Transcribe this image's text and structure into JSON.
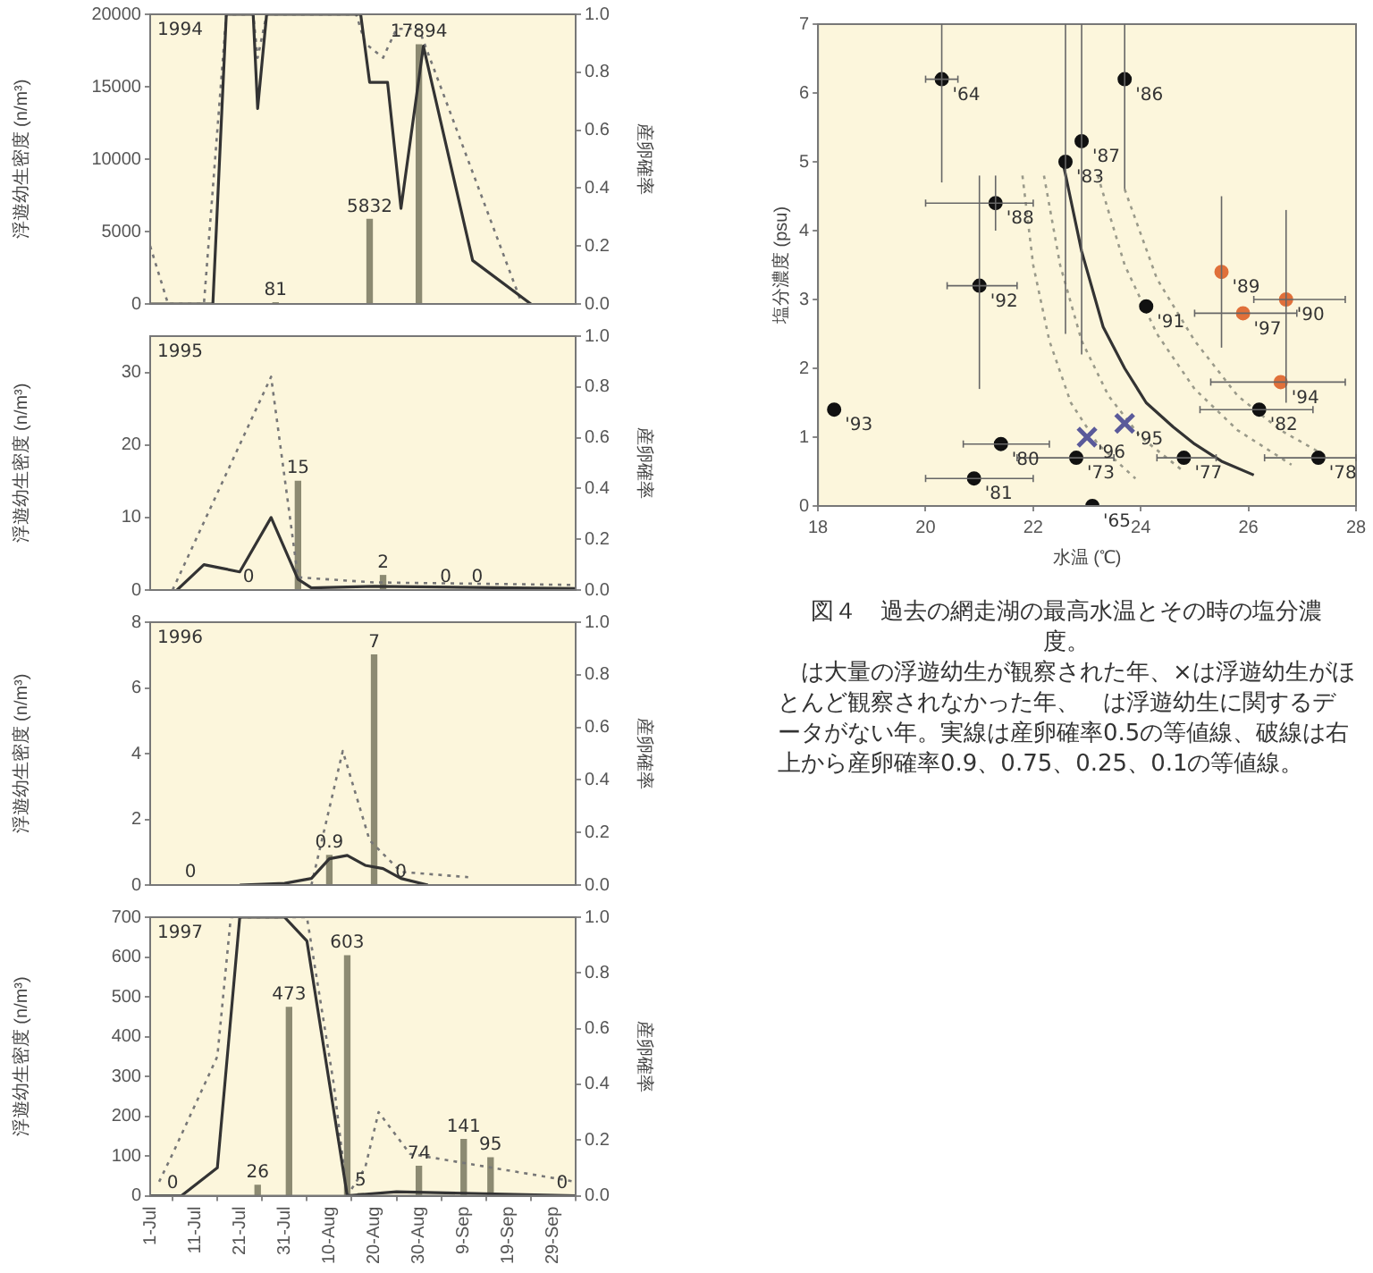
{
  "chart_data": [
    {
      "type": "line",
      "ylabel": "浮遊幼生密度 (n/m³)",
      "y2label": "産卵確率",
      "annotations": [
        "1994"
      ],
      "tick_labels": "y",
      "xlim": [
        "--07-01",
        "--10-04"
      ],
      "ylim": [
        0,
        20000
      ],
      "yticks": [
        0,
        5000,
        10000,
        15000,
        20000
      ],
      "y2lim": [
        0,
        1
      ],
      "y2ticks": [
        {
          "value": 0,
          "label": "0.0"
        },
        {
          "value": 0.2,
          "label": "0.2"
        },
        {
          "value": 0.4,
          "label": "0.4"
        },
        {
          "value": 0.6,
          "label": "0.6"
        },
        {
          "value": 0.8,
          "label": "0.8"
        },
        {
          "value": 1,
          "label": "1.0"
        }
      ],
      "series": [
        {
          "type": "bar",
          "color": "#8c8a72",
          "x": [
            "--07-29",
            "--08-19",
            "--08-30"
          ],
          "values": [
            81,
            5832,
            17894
          ],
          "value_labels": [
            "81",
            "5832",
            "17894"
          ]
        },
        {
          "color": "#333333",
          "line_style": "solid",
          "x": [
            "--07-01",
            "--07-13",
            "--07-15",
            "--07-18",
            "--07-24",
            "--07-25",
            "--07-27",
            "--08-17",
            "--08-19",
            "--08-23",
            "--08-26",
            "--08-31",
            "--09-11",
            "--09-24"
          ],
          "values": [
            0,
            0,
            0,
            20000,
            20000,
            13500,
            20000,
            20000,
            15300,
            15300,
            6600,
            17800,
            3000,
            0
          ]
        },
        {
          "color": "#777777",
          "line_style": "dotted",
          "axis": "y2",
          "x": [
            "--07-01",
            "--07-05",
            "--07-13",
            "--07-18",
            "--07-24",
            "--07-25",
            "--07-27",
            "--08-16",
            "--08-18",
            "--08-22",
            "--08-25",
            "--08-30",
            "--09-22"
          ],
          "values": [
            0.2,
            0,
            0,
            1,
            1,
            0.85,
            1,
            1,
            0.9,
            0.85,
            0.95,
            0.95,
            0
          ]
        }
      ]
    },
    {
      "type": "line",
      "ylabel": "浮遊幼生密度 (n/m³)",
      "y2label": "産卵確率",
      "annotations": [
        "1995"
      ],
      "tick_labels": "y",
      "xlim": [
        "--07-01",
        "--10-04"
      ],
      "ylim": [
        0,
        35
      ],
      "yticks": [
        0,
        10,
        20,
        30
      ],
      "y2lim": [
        0,
        1
      ],
      "y2ticks": [
        {
          "value": 0,
          "label": "0.0"
        },
        {
          "value": 0.2,
          "label": "0.2"
        },
        {
          "value": 0.4,
          "label": "0.4"
        },
        {
          "value": 0.6,
          "label": "0.6"
        },
        {
          "value": 0.8,
          "label": "0.8"
        },
        {
          "value": 1,
          "label": "1.0"
        }
      ],
      "series": [
        {
          "type": "bar",
          "color": "#8c8a72",
          "x": [
            "--07-23",
            "--08-03",
            "--08-22",
            "--09-05",
            "--09-12"
          ],
          "values": [
            0,
            15,
            2,
            0,
            0
          ],
          "value_labels": [
            "0",
            "15",
            "2",
            "0",
            "0"
          ]
        },
        {
          "color": "#333333",
          "line_style": "solid",
          "x": [
            "--07-07",
            "--07-13",
            "--07-17",
            "--07-21",
            "--07-28",
            "--08-03",
            "--08-06",
            "--08-20",
            "--10-04"
          ],
          "values": [
            0,
            3.5,
            3,
            2.5,
            10,
            1.5,
            0.3,
            0.5,
            0.2
          ]
        },
        {
          "color": "#777777",
          "line_style": "dotted",
          "axis": "y2",
          "x": [
            "--07-06",
            "--07-28",
            "--08-03",
            "--08-20",
            "--10-04"
          ],
          "values": [
            0,
            0.84,
            0.05,
            0.03,
            0.02
          ]
        }
      ]
    },
    {
      "type": "line",
      "ylabel": "浮遊幼生密度 (n/m³)",
      "y2label": "産卵確率",
      "annotations": [
        "1996"
      ],
      "tick_labels": "y",
      "xlim": [
        "--07-01",
        "--10-04"
      ],
      "ylim": [
        0,
        8
      ],
      "yticks": [
        0,
        2,
        4,
        6,
        8
      ],
      "y2lim": [
        0,
        1
      ],
      "y2ticks": [
        {
          "value": 0,
          "label": "0.0"
        },
        {
          "value": 0.2,
          "label": "0.2"
        },
        {
          "value": 0.4,
          "label": "0.4"
        },
        {
          "value": 0.6,
          "label": "0.6"
        },
        {
          "value": 0.8,
          "label": "0.8"
        },
        {
          "value": 1,
          "label": "1.0"
        }
      ],
      "series": [
        {
          "type": "bar",
          "color": "#8c8a72",
          "x": [
            "--07-10",
            "--08-10",
            "--08-20",
            "--08-26"
          ],
          "values": [
            0,
            0.9,
            7,
            0
          ],
          "value_labels": [
            "0",
            "0.9",
            "7",
            "0"
          ]
        },
        {
          "color": "#333333",
          "line_style": "solid",
          "x": [
            "--07-21",
            "--07-31",
            "--08-06",
            "--08-10",
            "--08-14",
            "--08-18",
            "--08-22",
            "--08-26",
            "--09-01"
          ],
          "values": [
            0,
            0.05,
            0.2,
            0.8,
            0.9,
            0.6,
            0.5,
            0.2,
            0
          ]
        },
        {
          "color": "#777777",
          "line_style": "dotted",
          "axis": "y2",
          "x": [
            "--08-06",
            "--08-13",
            "--08-19",
            "--08-26",
            "--09-10"
          ],
          "values": [
            0,
            0.51,
            0.17,
            0.05,
            0.03
          ]
        }
      ]
    },
    {
      "type": "line",
      "ylabel": "浮遊幼生密度 (n/m³)",
      "y2label": "産卵確率",
      "annotations": [
        "1997"
      ],
      "xlim": [
        "--07-01",
        "--10-04"
      ],
      "xticks": [
        {
          "value": "--07-01",
          "label": "1-Jul"
        },
        {
          "value": "--07-11",
          "label": "11-Jul"
        },
        {
          "value": "--07-21",
          "label": "21-Jul"
        },
        {
          "value": "--07-31",
          "label": "31-Jul"
        },
        {
          "value": "--08-10",
          "label": "10-Aug"
        },
        {
          "value": "--08-20",
          "label": "20-Aug"
        },
        {
          "value": "--08-30",
          "label": "30-Aug"
        },
        {
          "value": "--09-09",
          "label": "9-Sep"
        },
        {
          "value": "--09-19",
          "label": "19-Sep"
        },
        {
          "value": "--09-29",
          "label": "29-Sep"
        }
      ],
      "ylim": [
        0,
        700
      ],
      "yticks": [
        0,
        100,
        200,
        300,
        400,
        500,
        600,
        700
      ],
      "y2lim": [
        0,
        1
      ],
      "y2ticks": [
        {
          "value": 0,
          "label": "0.0"
        },
        {
          "value": 0.2,
          "label": "0.2"
        },
        {
          "value": 0.4,
          "label": "0.4"
        },
        {
          "value": 0.6,
          "label": "0.6"
        },
        {
          "value": 0.8,
          "label": "0.8"
        },
        {
          "value": 1,
          "label": "1.0"
        }
      ],
      "series": [
        {
          "type": "bar",
          "color": "#8c8a72",
          "x": [
            "--07-06",
            "--07-25",
            "--08-01",
            "--08-14",
            "--08-17",
            "--08-30",
            "--09-09",
            "--09-15",
            "--10-01"
          ],
          "values": [
            0,
            26,
            473,
            603,
            5,
            74,
            141,
            95,
            0
          ],
          "value_labels": [
            "0",
            "26",
            "473",
            "603",
            "5",
            "74",
            "141",
            "95",
            "0"
          ]
        },
        {
          "color": "#333333",
          "line_style": "solid",
          "x": [
            "--07-01",
            "--07-08",
            "--07-16",
            "--07-21",
            "--07-31",
            "--08-05",
            "--08-14",
            "--08-25",
            "--10-04"
          ],
          "values": [
            0,
            0,
            70,
            700,
            700,
            640,
            0,
            10,
            0
          ]
        },
        {
          "color": "#777777",
          "line_style": "dotted",
          "axis": "y2",
          "x": [
            "--07-03",
            "--07-06",
            "--07-16",
            "--07-19",
            "--08-05",
            "--08-11",
            "--08-14",
            "--08-18",
            "--08-21",
            "--08-28",
            "--10-04"
          ],
          "values": [
            0.05,
            0.15,
            0.5,
            1,
            1,
            0.4,
            0,
            0.1,
            0.3,
            0.15,
            0.05
          ]
        }
      ]
    },
    {
      "type": "scatter",
      "title": "図４　過去の網走湖の最高水温とその時の塩分濃度。",
      "xlabel": "水温 (℃)",
      "ylabel": "塩分濃度 (psu)",
      "xlim": [
        18,
        28
      ],
      "xticks": [
        18,
        20,
        22,
        24,
        26,
        28
      ],
      "ylim": [
        0,
        7
      ],
      "yticks": [
        0,
        1,
        2,
        3,
        4,
        5,
        6,
        7
      ],
      "annotations": [
        "　は大量の浮遊幼生が観察された年、×は浮遊幼生がほとんど観察されなかった年、　は浮遊幼生に関するデータがない年。実線は産卵確率0.5の等値線、破線は右上から産卵確率0.9、0.75、0.25、0.1の等値線。",
        {
          "text": "'64",
          "x": 20.3,
          "y": 6.2
        },
        {
          "text": "'88",
          "x": 21.3,
          "y": 4.4
        },
        {
          "text": "'92",
          "x": 21.0,
          "y": 3.2
        },
        {
          "text": "'93",
          "x": 18.3,
          "y": 1.4
        },
        {
          "text": "'80",
          "x": 21.4,
          "y": 0.9
        },
        {
          "text": "'81",
          "x": 20.9,
          "y": 0.4
        },
        {
          "text": "'65",
          "x": 23.1,
          "y": 0.0
        },
        {
          "text": "'73",
          "x": 22.8,
          "y": 0.7
        },
        {
          "text": "'77",
          "x": 24.8,
          "y": 0.7
        },
        {
          "text": "'78",
          "x": 27.3,
          "y": 0.7
        },
        {
          "text": "'82",
          "x": 26.2,
          "y": 1.4
        },
        {
          "text": "'91",
          "x": 24.1,
          "y": 2.9
        },
        {
          "text": "'83",
          "x": 22.6,
          "y": 5.0
        },
        {
          "text": "'87",
          "x": 22.9,
          "y": 5.3
        },
        {
          "text": "'86",
          "x": 23.7,
          "y": 6.2
        },
        {
          "text": "'89",
          "x": 25.5,
          "y": 3.4
        },
        {
          "text": "'97",
          "x": 25.9,
          "y": 2.8
        },
        {
          "text": "'90",
          "x": 26.7,
          "y": 3.0
        },
        {
          "text": "'94",
          "x": 26.6,
          "y": 1.8
        },
        {
          "text": "'96",
          "x": 23.0,
          "y": 1.0
        },
        {
          "text": "'95",
          "x": 23.7,
          "y": 1.2
        }
      ],
      "series": [
        {
          "type": "line",
          "color": "#9a9a8a",
          "line_style": "dotted",
          "x": [
            23.7,
            24.3,
            25.0,
            25.8,
            26.6,
            27.5
          ],
          "values": [
            4.6,
            3.3,
            2.4,
            1.6,
            1.1,
            0.7
          ]
        },
        {
          "type": "line",
          "color": "#9a9a8a",
          "line_style": "dotted",
          "x": [
            23.2,
            23.7,
            24.3,
            25.0,
            25.8,
            26.8
          ],
          "values": [
            4.8,
            3.5,
            2.5,
            1.7,
            1.1,
            0.6
          ]
        },
        {
          "type": "line",
          "color": "#9a9a8a",
          "line_style": "dotted",
          "x": [
            22.2,
            22.5,
            22.9,
            23.4,
            24.0,
            24.8
          ],
          "values": [
            4.8,
            3.5,
            2.4,
            1.6,
            1.0,
            0.5
          ]
        },
        {
          "type": "line",
          "color": "#9a9a8a",
          "line_style": "dotted",
          "x": [
            21.8,
            22.0,
            22.3,
            22.7,
            23.2,
            23.9
          ],
          "values": [
            4.8,
            3.5,
            2.4,
            1.5,
            0.9,
            0.4
          ]
        },
        {
          "type": "line",
          "color": "#333333",
          "line_style": "solid",
          "x": [
            22.55,
            22.9,
            23.3,
            23.7,
            24.1,
            24.6,
            25.0,
            25.5,
            26.1
          ],
          "values": [
            5.0,
            3.7,
            2.6,
            2.0,
            1.5,
            1.15,
            0.9,
            0.65,
            0.45
          ]
        },
        {
          "color": "#111111",
          "marker": "circle",
          "x": [
            20.3,
            21.3,
            21.0,
            18.3,
            21.4,
            20.9,
            23.1,
            22.8,
            24.8,
            27.3,
            26.2,
            24.1,
            22.6,
            22.9,
            23.7
          ],
          "values": [
            6.2,
            4.4,
            3.2,
            1.4,
            0.9,
            0.4,
            0.0,
            0.7,
            0.7,
            0.7,
            1.4,
            2.9,
            5.0,
            5.3,
            6.2
          ],
          "errors": [
            [
              4.7,
              7
            ],
            [
              4.0,
              4.8
            ],
            [
              1.7,
              4.8
            ],
            null,
            null,
            null,
            null,
            null,
            null,
            null,
            null,
            null,
            [
              2.5,
              7
            ],
            [
              2.2,
              7
            ],
            [
              4.6,
              7
            ]
          ],
          "xerrors": [
            [
              20.0,
              20.6
            ],
            [
              20.0,
              22.0
            ],
            [
              20.4,
              21.7
            ],
            null,
            [
              20.7,
              22.3
            ],
            [
              20.0,
              22.0
            ],
            null,
            [
              21.7,
              23.5
            ],
            [
              24.3,
              25.4
            ],
            [
              26.3,
              28.0
            ],
            [
              25.1,
              27.2
            ],
            null,
            null,
            null,
            null
          ]
        },
        {
          "color": "#e0703a",
          "marker": "circle",
          "x": [
            25.5,
            25.9,
            26.7,
            26.6
          ],
          "values": [
            3.4,
            2.8,
            3.0,
            1.8
          ],
          "errors": [
            [
              2.3,
              4.5
            ],
            null,
            [
              1.5,
              4.3
            ],
            null
          ],
          "xerrors": [
            null,
            [
              25.0,
              26.9
            ],
            [
              26.1,
              27.8
            ],
            [
              25.3,
              27.8
            ]
          ]
        },
        {
          "color": "#5a5a9a",
          "marker": "cross",
          "x": [
            23.0,
            23.7
          ],
          "values": [
            1.0,
            1.2
          ]
        }
      ]
    }
  ]
}
